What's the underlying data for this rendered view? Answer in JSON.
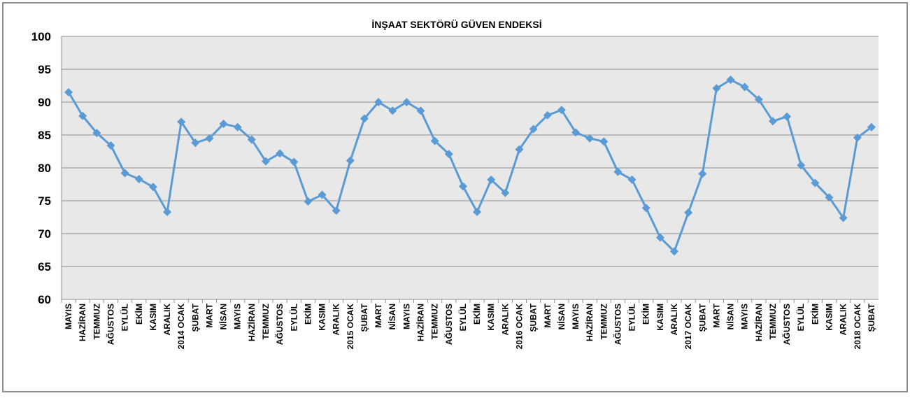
{
  "chart_data": {
    "type": "line",
    "title": "İNŞAAT SEKTÖRÜ GÜVEN ENDEKSİ",
    "categories": [
      "MAYIS",
      "HAZİRAN",
      "TEMMUZ",
      "AĞUSTOS",
      "EYLÜL",
      "EKİM",
      "KASIM",
      "ARALIK",
      "2014 OCAK",
      "ŞUBAT",
      "MART",
      "NİSAN",
      "MAYIS",
      "HAZİRAN",
      "TEMMUZ",
      "AĞUSTOS",
      "EYLÜL",
      "EKİM",
      "KASIM",
      "ARALIK",
      "2015 OCAK",
      "ŞUBAT",
      "MART",
      "NİSAN",
      "MAYIS",
      "HAZİRAN",
      "TEMMUZ",
      "AĞUSTOS",
      "EYLÜL",
      "EKİM",
      "KASIM",
      "ARALIK",
      "2016 OCAK",
      "ŞUBAT",
      "MART",
      "NİSAN",
      "MAYIS",
      "HAZİRAN",
      "TEMMUZ",
      "AĞUSTOS",
      "EYLÜL",
      "EKİM",
      "KASIM",
      "ARALIK",
      "2017 OCAK",
      "ŞUBAT",
      "MART",
      "NİSAN",
      "MAYIS",
      "HAZİRAN",
      "TEMMUZ",
      "AĞUSTOS",
      "EYLÜL",
      "EKİM",
      "KASIM",
      "ARALIK",
      "2018 OCAK",
      "ŞUBAT"
    ],
    "values": [
      91.5,
      87.9,
      85.3,
      83.4,
      79.2,
      78.3,
      77.1,
      73.3,
      87.0,
      83.8,
      84.5,
      86.7,
      86.2,
      84.3,
      81.0,
      82.2,
      80.9,
      74.9,
      75.9,
      73.5,
      81.1,
      87.5,
      90.0,
      88.7,
      90.0,
      88.7,
      84.1,
      82.1,
      77.2,
      73.3,
      78.2,
      76.2,
      82.8,
      85.9,
      88.0,
      88.8,
      85.4,
      84.5,
      84.0,
      79.4,
      78.2,
      73.9,
      69.4,
      67.3,
      73.2,
      79.1,
      92.1,
      93.4,
      92.3,
      90.4,
      87.1,
      87.8,
      80.4,
      77.7,
      75.5,
      72.4,
      84.6,
      86.2
    ],
    "color": "#5b9bd5",
    "ylim": [
      60,
      100
    ],
    "yticks": [
      60,
      65,
      70,
      75,
      80,
      85,
      90,
      95,
      100
    ],
    "grid": true
  }
}
